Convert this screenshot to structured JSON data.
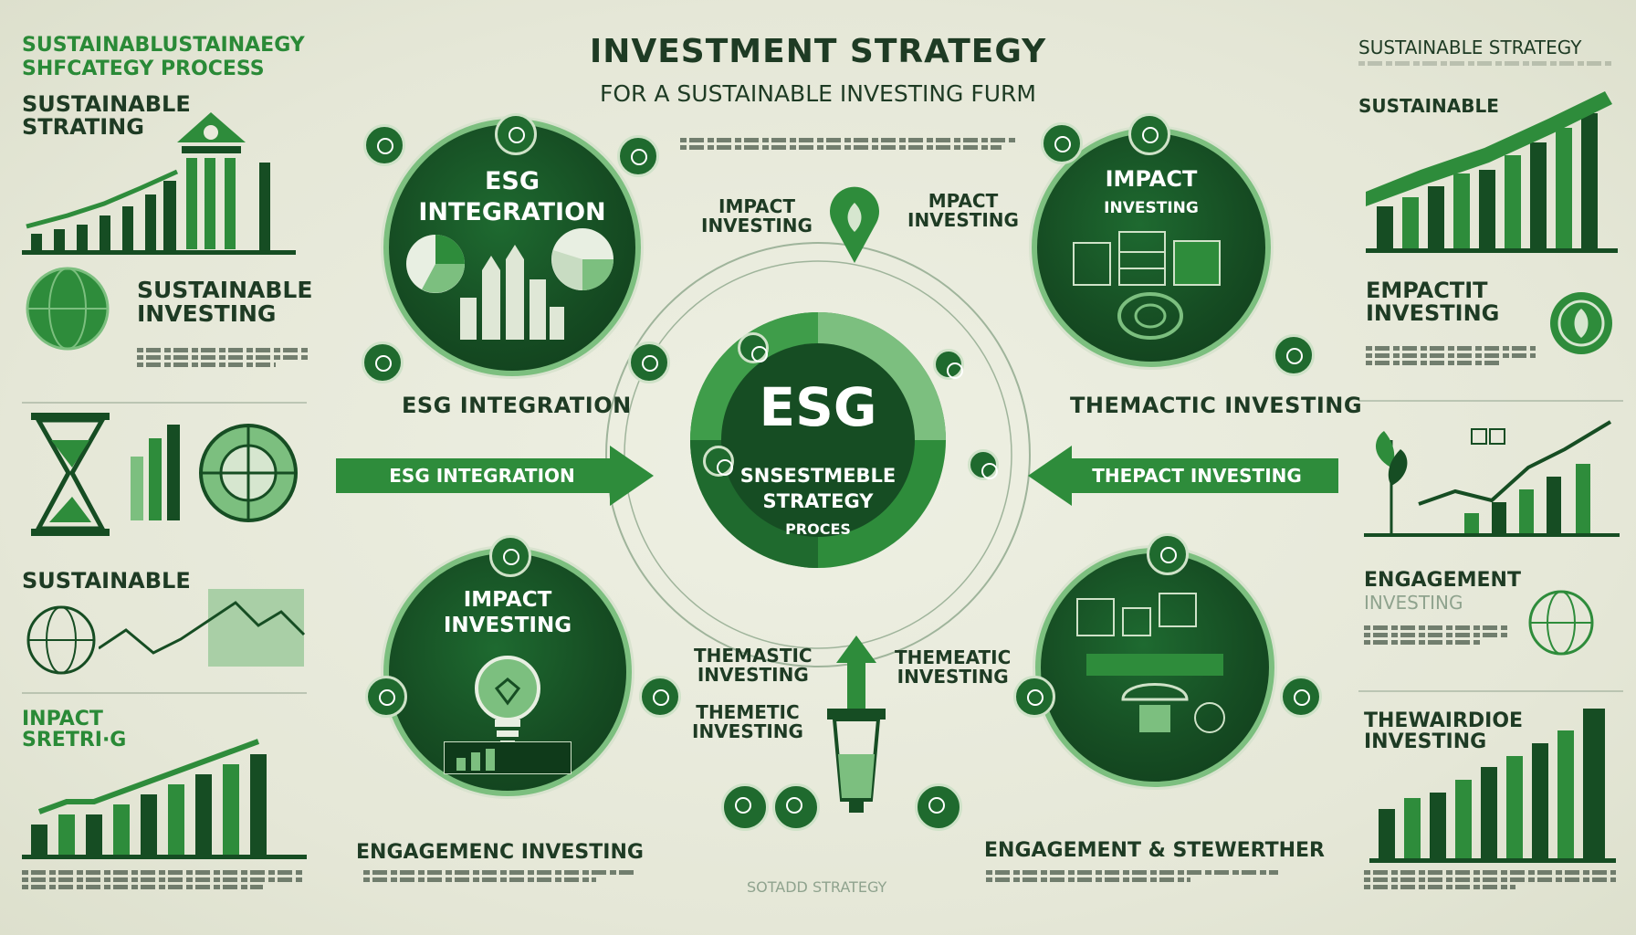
{
  "header": {
    "title": "INVESTMENT STRATEGY",
    "subtitle": "FOR A SUSTAINABLE INVESTING FURM"
  },
  "left_panel": {
    "title_line1": "SUSTAINABLUSTAINAEGY",
    "title_line2": "SHFCATEGY  PROCESS",
    "sec1": "SUSTAINABLE\nSTRATING",
    "sec2": "SUSTAINABLE\nINVESTING",
    "sec3": "SUSTAINABLE",
    "sec4": "INPACT\nSRETRI·G",
    "footer_bars": [
      3,
      4,
      4,
      5,
      6,
      7,
      8,
      9,
      10
    ]
  },
  "right_panel": {
    "title": "SUSTAINABLE STRATEGY",
    "sec1": "SUSTAINABLE",
    "sec2": "EMPACTIT\nINVESTING",
    "sec3": "ENGAGEMENT",
    "sec3_sub": "INVESTING",
    "sec4": "THEWAIRDIOE\nINVESTING"
  },
  "quadrants": {
    "top_left": {
      "circle_title": "ESG\nINTEGRATION",
      "caption": "ESG INTEGRATION"
    },
    "top_right": {
      "circle_title": "IMPACT",
      "circle_sub": "INVESTING",
      "caption": "THEMACTIC INVESTING"
    },
    "bottom_left": {
      "circle_title": "IMPACT\nINVESTING",
      "caption": "ENGAGEMENC INVESTING"
    },
    "bottom_right": {
      "caption": "ENGAGEMENT & STEWERTHER"
    }
  },
  "center": {
    "title": "ESG",
    "line1": "SNSESTMEBLE",
    "line2": "STRATEGY",
    "line3": "PROCES"
  },
  "arrows": {
    "left": "ESG INTEGRATION",
    "right": "THEPACT INVESTING"
  },
  "floating": {
    "impact_a": "IMPACT\nINVESTING",
    "impact_b": "MPACT\nINVESTING",
    "thematic_a": "THEMASTIC\nINVESTING",
    "thematic_b": "THEMETIC\nINVESTING",
    "thematic_c": "THEMEATIC\nINVESTING"
  },
  "footer": {
    "center": "SOTADD STRATEGY"
  },
  "colors": {
    "dark_green": "#164d23",
    "mid_green": "#2e8c3b",
    "light_green": "#7cbf7f",
    "background": "#e9eadc"
  }
}
